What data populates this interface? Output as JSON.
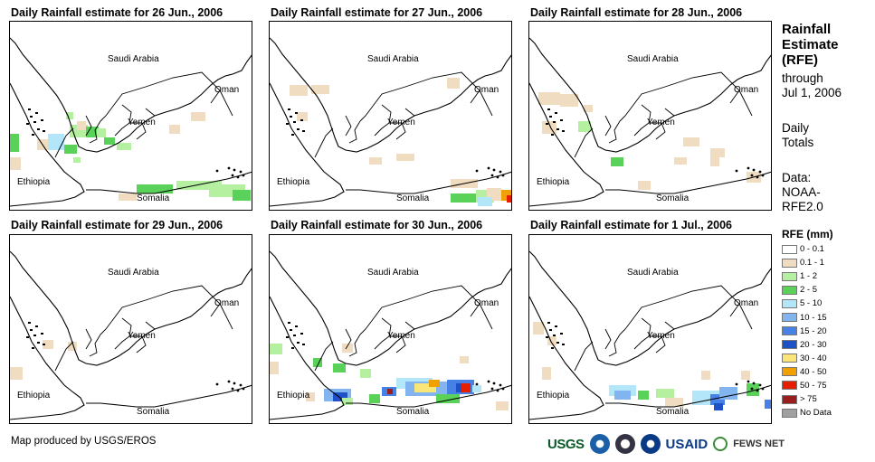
{
  "panels": [
    {
      "title": "Daily Rainfall estimate for 26 Jun., 2006"
    },
    {
      "title": "Daily Rainfall estimate for 27 Jun., 2006"
    },
    {
      "title": "Daily Rainfall estimate for 28 Jun., 2006"
    },
    {
      "title": "Daily Rainfall estimate for 29 Jun., 2006"
    },
    {
      "title": "Daily Rainfall estimate for 30 Jun., 2006"
    },
    {
      "title": "Daily Rainfall estimate for 1 Jul., 2006"
    }
  ],
  "map_labels": {
    "saudi": "Saudi Arabia",
    "oman": "Oman",
    "yemen": "Yemen",
    "ethiopia": "Ethiopia",
    "somalia": "Somalia"
  },
  "side": {
    "title_l1": "Rainfall",
    "title_l2": "Estimate",
    "title_l3": "(RFE)",
    "through": "through",
    "date": "Jul 1, 2006",
    "daily": "Daily",
    "totals": "Totals",
    "data": "Data:",
    "src1": "NOAA-",
    "src2": "RFE2.0"
  },
  "legend": {
    "title": "RFE (mm)",
    "items": [
      {
        "label": "0 - 0.1",
        "color": "#ffffff"
      },
      {
        "label": "0.1 - 1",
        "color": "#f0dcc0"
      },
      {
        "label": "1 - 2",
        "color": "#b4f0a0"
      },
      {
        "label": "2 - 5",
        "color": "#5ad25a"
      },
      {
        "label": "5 - 10",
        "color": "#b4e6fa"
      },
      {
        "label": "10 - 15",
        "color": "#82b4f0"
      },
      {
        "label": "15 - 20",
        "color": "#4682e6"
      },
      {
        "label": "20 - 30",
        "color": "#1e50c8"
      },
      {
        "label": "30 - 40",
        "color": "#fae678"
      },
      {
        "label": "40 - 50",
        "color": "#f0a000"
      },
      {
        "label": "50 - 75",
        "color": "#e61e00"
      },
      {
        "label": "> 75",
        "color": "#9b1e1e"
      },
      {
        "label": "No Data",
        "color": "#a0a0a0"
      }
    ]
  },
  "footer": "Map produced by USGS/EROS",
  "logos": {
    "usgs": "USGS",
    "usaid": "USAID",
    "fews": "FEWS NET"
  }
}
